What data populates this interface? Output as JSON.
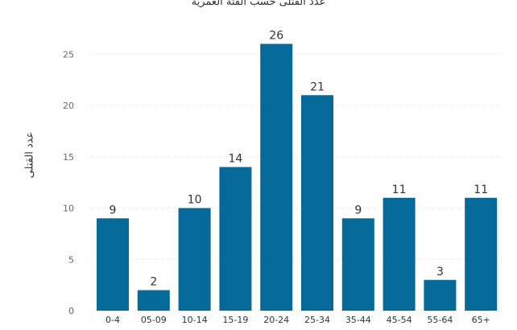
{
  "chart_data": {
    "type": "bar",
    "title": "عدد القتلى حسب الفئة العمرية",
    "ylabel": "عدد القتلى",
    "xlabel": "",
    "categories": [
      "0-4",
      "05-09",
      "10-14",
      "15-19",
      "20-24",
      "25-34",
      "35-44",
      "45-54",
      "55-64",
      "65+"
    ],
    "values": [
      9,
      2,
      10,
      14,
      26,
      21,
      9,
      11,
      3,
      11
    ],
    "ylim": [
      0,
      28
    ],
    "yticks": [
      0,
      5,
      10,
      15,
      20,
      25
    ],
    "grid": true,
    "bar_color": "#05699a",
    "data_labels": true
  }
}
